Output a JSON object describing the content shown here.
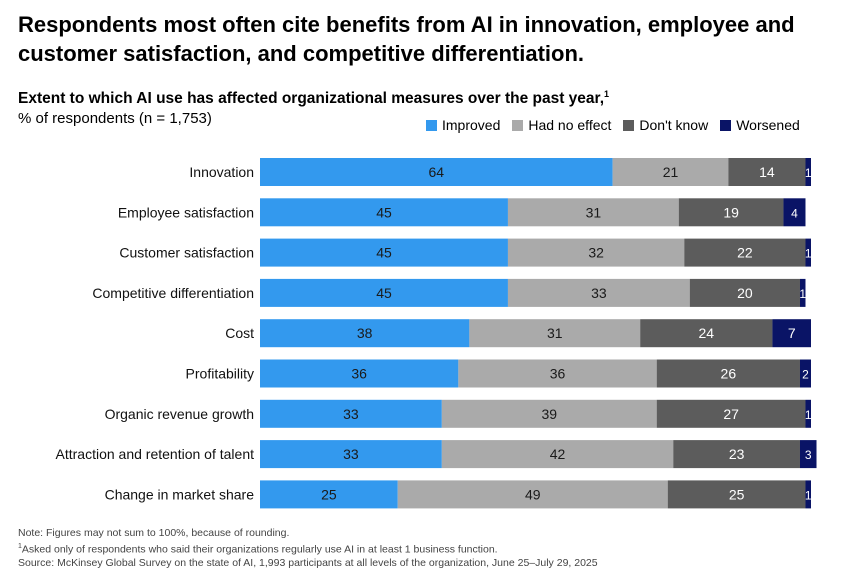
{
  "headline": "Respondents most often cite benefits from AI in innovation, employee and customer satisfaction, and competitive differentiation.",
  "chart_data": {
    "type": "bar",
    "orientation": "horizontal",
    "stacked": true,
    "title": "Extent to which AI use has affected organizational measures over the past year,",
    "title_footnote_marker": "1",
    "subtitle": "% of respondents (n = 1,753)",
    "categories": [
      "Innovation",
      "Employee satisfaction",
      "Customer satisfaction",
      "Competitive differentiation",
      "Cost",
      "Profitability",
      "Organic revenue growth",
      "Attraction and retention of talent",
      "Change in market share"
    ],
    "series": [
      {
        "name": "Improved",
        "color": "#3399ee",
        "label_color": "#1a1a1a",
        "values": [
          64,
          45,
          45,
          45,
          38,
          36,
          33,
          33,
          25
        ]
      },
      {
        "name": "Had no effect",
        "color": "#aaaaaa",
        "label_color": "#1a1a1a",
        "values": [
          21,
          31,
          32,
          33,
          31,
          36,
          39,
          42,
          49
        ]
      },
      {
        "name": "Don't know",
        "color": "#5c5c5c",
        "label_color": "#ffffff",
        "values": [
          14,
          19,
          22,
          20,
          24,
          26,
          27,
          23,
          25
        ]
      },
      {
        "name": "Worsened",
        "color": "#0a1466",
        "label_color": "#ffffff",
        "values": [
          1,
          4,
          1,
          1,
          7,
          2,
          1,
          3,
          1
        ]
      }
    ],
    "xlim": [
      0,
      100
    ],
    "legend_position": "top-right"
  },
  "notes": {
    "note": "Note: Figures may not sum to 100%, because of rounding.",
    "footnote_marker": "1",
    "footnote": "Asked only of respondents who said their organizations regularly use AI in at least 1 business function.",
    "source": "Source: McKinsey Global Survey on the state of AI, 1,993 participants at all levels of the organization, June 25–July 29, 2025"
  }
}
